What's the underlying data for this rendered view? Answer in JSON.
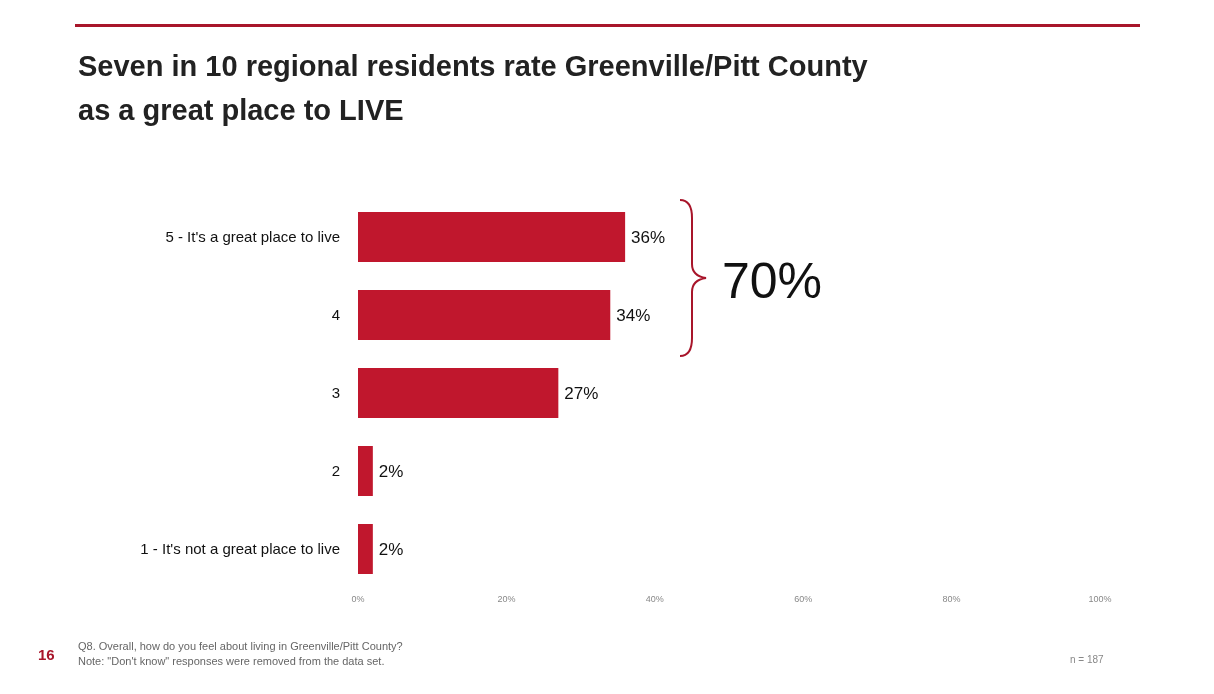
{
  "chart_data": {
    "type": "bar",
    "orientation": "horizontal",
    "title": "Seven in 10 regional residents rate Greenville/Pitt County as a great place to LIVE",
    "categories": [
      "5 - It's a great place to live",
      "4",
      "3",
      "2",
      "1 - It's not a great place to live"
    ],
    "values": [
      36,
      34,
      27,
      2,
      2
    ],
    "value_labels": [
      "36%",
      "34%",
      "27%",
      "2%",
      "2%"
    ],
    "color": "#c0172d",
    "xlim": [
      0,
      100
    ],
    "xticks": [
      {
        "value": 0,
        "label": "0%"
      },
      {
        "value": 20,
        "label": "20%"
      },
      {
        "value": 40,
        "label": "40%"
      },
      {
        "value": 60,
        "label": "60%"
      },
      {
        "value": 80,
        "label": "80%"
      },
      {
        "value": 100,
        "label": "100%"
      }
    ],
    "grid": false,
    "legend": false,
    "annotations": [
      "70%",
      "Q8. Overall, how do you feel about living in Greenville/Pitt County?",
      "Note: \"Don't know\" responses were removed from the data set.",
      "n = 187",
      "16"
    ]
  }
}
